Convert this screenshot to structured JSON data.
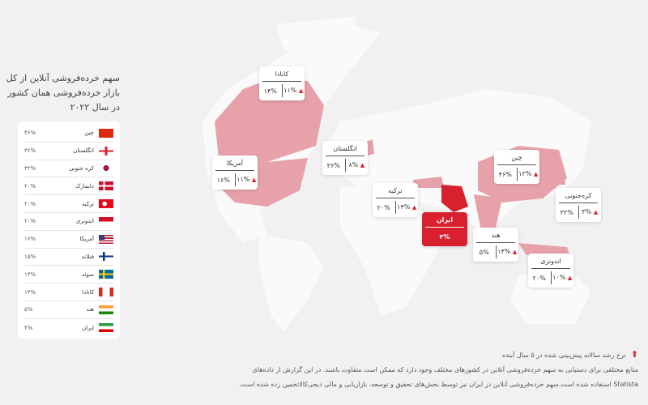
{
  "title": "سهم خرده‌فروشی آنلاین از کل بازار خرده‌فروشی همان کشور در سال ۲۰۲۲",
  "legend": [
    {
      "name": "چین",
      "value": "۴۶%",
      "flag": "china"
    },
    {
      "name": "انگلستان",
      "value": "۳۶%",
      "flag": "england"
    },
    {
      "name": "کره جنوبی",
      "value": "۳۲%",
      "flag": "korea"
    },
    {
      "name": "دانمارک",
      "value": "۲۰%",
      "flag": "denmark"
    },
    {
      "name": "ترکیه",
      "value": "۲۰%",
      "flag": "turkey"
    },
    {
      "name": "اندونزی",
      "value": "۲۰%",
      "flag": "indonesia"
    },
    {
      "name": "آمریکا",
      "value": "۱۶%",
      "flag": "usa"
    },
    {
      "name": "فنلاند",
      "value": "۱۵%",
      "flag": "finland"
    },
    {
      "name": "سوئد",
      "value": "۱۴%",
      "flag": "sweden"
    },
    {
      "name": "کانادا",
      "value": "۱۴%",
      "flag": "canada"
    },
    {
      "name": "هند",
      "value": "۵%",
      "flag": "india"
    },
    {
      "name": "ایران",
      "value": "۴%",
      "flag": "iran"
    }
  ],
  "callouts": {
    "canada": {
      "name": "کانادا",
      "share": "۱۴%",
      "growth": "۱۱%"
    },
    "usa": {
      "name": "آمریکا",
      "share": "۱۶%",
      "growth": "۱۱%"
    },
    "england": {
      "name": "انگلستان",
      "share": "۳۶%",
      "growth": "۸%"
    },
    "turkey": {
      "name": "ترکیه",
      "share": "۲۰%",
      "growth": "۱۴%"
    },
    "iran": {
      "name": "ایران",
      "share": "۴%"
    },
    "china": {
      "name": "چین",
      "share": "۴۶%",
      "growth": "۱۲%"
    },
    "korea": {
      "name": "کره‌جنوبی",
      "share": "۳۲%",
      "growth": "۳%"
    },
    "india": {
      "name": "هند",
      "share": "۵%",
      "growth": "۱۴%"
    },
    "indonesia": {
      "name": "اندونزی",
      "share": "۲۰%",
      "growth": "۱۰%"
    }
  },
  "footer": {
    "legend_note": "نرخ رشد سالانه پیش‌بینی شده در ۵ سال آینده",
    "line1": "منابع مختلفی برای دستیابی به سهم خرده‌فروشی آنلاین در کشورهای مختلف وجود دارد که ممکن است متفاوت باشند. در این گزارش از داده‌های",
    "line2": "Statista استفاده شده است.سهم خرده‌فروشی آنلاین در ایران نیز توسط بخش‌های تحقیق و توسعه، بازاریابی و مالی دیجی‌کالاتخمین زده شده است."
  },
  "colors": {
    "accent": "#d8202e",
    "highlight": "#e6a2a8",
    "land": "#fafafa",
    "background": "#f1f1f1"
  }
}
